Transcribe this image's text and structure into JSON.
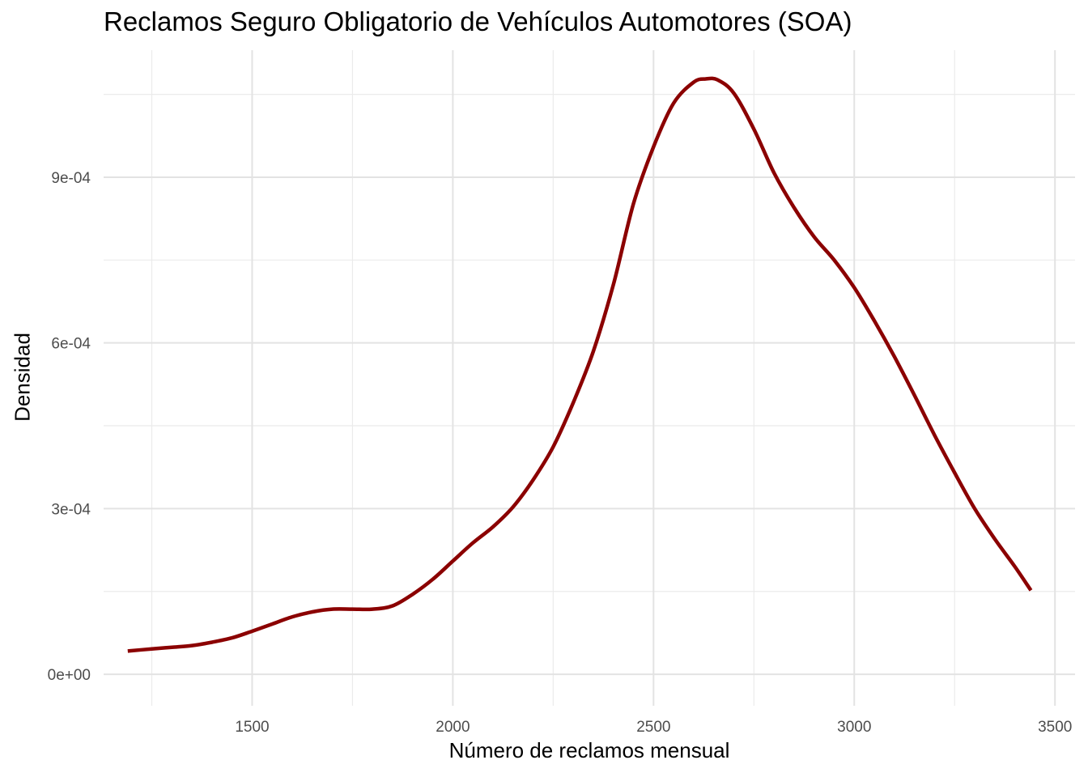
{
  "chart_data": {
    "type": "line",
    "title": "Reclamos Seguro Obligatorio de Vehículos Automotores (SOA)",
    "xlabel": "Número de reclamos mensual",
    "ylabel": "Densidad",
    "xlim": [
      1130,
      3550
    ],
    "ylim": [
      -5.7e-05,
      0.00113
    ],
    "x_ticks": [
      1500,
      2000,
      2500,
      3000,
      3500
    ],
    "x_tick_labels": [
      "1500",
      "2000",
      "2500",
      "3000",
      "3500"
    ],
    "x_minor_ticks": [
      1250,
      1750,
      2250,
      2750,
      3250
    ],
    "y_ticks": [
      0,
      0.0003,
      0.0006,
      0.0009
    ],
    "y_tick_labels": [
      "0e+00",
      "3e-04",
      "6e-04",
      "9e-04"
    ],
    "y_minor_ticks": [
      0.00015,
      0.00045,
      0.00075,
      0.00105
    ],
    "grid": true,
    "line_color": "#8b0000",
    "series": [
      {
        "name": "",
        "x": [
          1190,
          1250,
          1300,
          1350,
          1400,
          1450,
          1500,
          1550,
          1600,
          1650,
          1700,
          1750,
          1800,
          1850,
          1900,
          1950,
          2000,
          2050,
          2100,
          2150,
          2200,
          2250,
          2300,
          2350,
          2400,
          2450,
          2500,
          2550,
          2600,
          2630,
          2660,
          2700,
          2750,
          2800,
          2850,
          2900,
          2950,
          3000,
          3050,
          3100,
          3150,
          3200,
          3250,
          3300,
          3350,
          3400,
          3440
        ],
        "y": [
          4.2e-05,
          4.6e-05,
          4.9e-05,
          5.2e-05,
          5.8e-05,
          6.6e-05,
          7.8e-05,
          9.1e-05,
          0.000104,
          0.000113,
          0.000118,
          0.000118,
          0.000118,
          0.000124,
          0.000145,
          0.000172,
          0.000205,
          0.000238,
          0.000267,
          0.000303,
          0.000352,
          0.000412,
          0.000492,
          0.000585,
          0.000706,
          0.000852,
          0.000955,
          0.001034,
          0.001072,
          0.001078,
          0.001076,
          0.001052,
          0.000987,
          0.000908,
          0.000845,
          0.000792,
          0.00075,
          0.0007,
          0.00064,
          0.000575,
          0.000505,
          0.000433,
          0.000365,
          0.0003,
          0.000245,
          0.000195,
          0.000152
        ]
      }
    ]
  }
}
